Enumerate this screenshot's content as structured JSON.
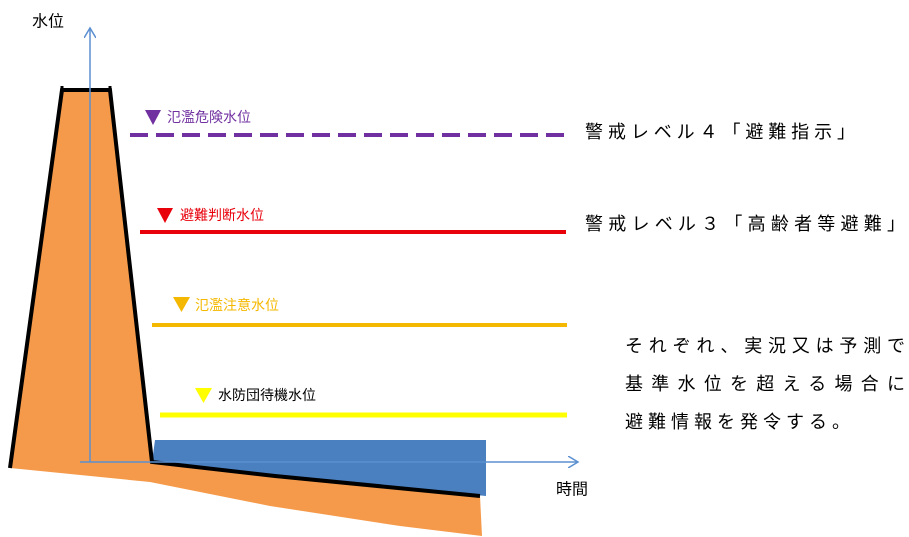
{
  "axes": {
    "y_label": "水位",
    "x_label": "時間"
  },
  "levels": [
    {
      "label": "氾濫危険水位",
      "warning": "警戒レベル４「避難指示」"
    },
    {
      "label": "避難判断水位",
      "warning": "警戒レベル３「高齢者等避難」"
    },
    {
      "label": "氾濫注意水位"
    },
    {
      "label": "水防団待機水位"
    }
  ],
  "note": [
    "それぞれ、実況又は予測で",
    "基準水位を超える場合に",
    "避難情報を発令する。"
  ]
}
